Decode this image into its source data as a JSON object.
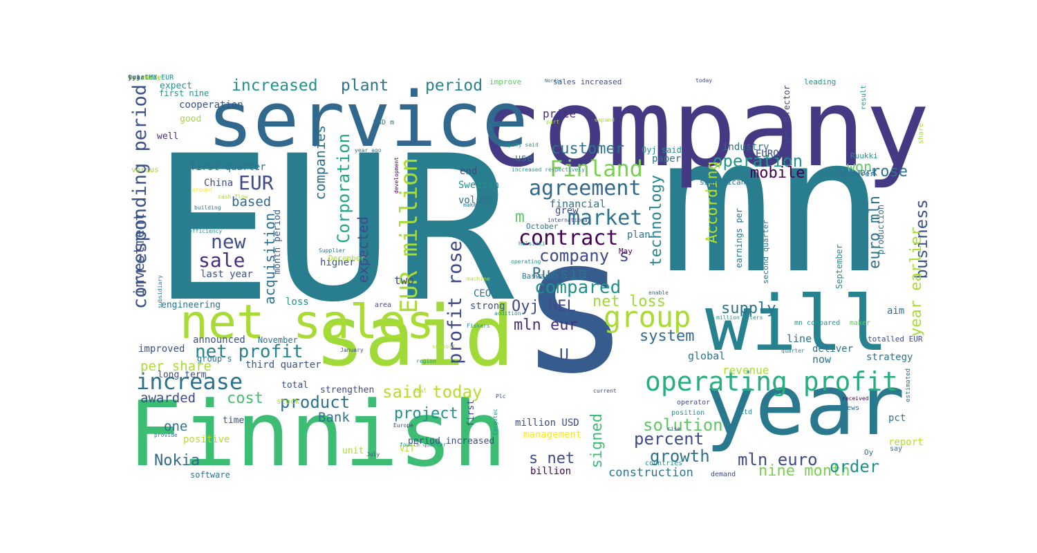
{
  "palette": {
    "dark_purple": "#440154",
    "purple": "#472d7b",
    "indigo": "#3b528b",
    "blue": "#2c728e",
    "teal": "#21918c",
    "green_teal": "#28ae80",
    "green": "#5ec962",
    "lime": "#addc30",
    "yellow": "#fde725"
  },
  "words": [
    {
      "text": "EUR",
      "color": "#287d8e"
    },
    {
      "text": "mn",
      "color": "#287d8e"
    },
    {
      "text": "company",
      "color": "#443a83"
    },
    {
      "text": "service",
      "color": "#31688e"
    },
    {
      "text": "s",
      "color": "#365c8d"
    },
    {
      "text": "said",
      "color": "#a0da39"
    },
    {
      "text": "will",
      "color": "#26828e"
    },
    {
      "text": "year",
      "color": "#2a788e"
    },
    {
      "text": "Finnish",
      "color": "#3dbc74"
    },
    {
      "text": "net sales",
      "color": "#a8db34"
    },
    {
      "text": "operating profit",
      "color": "#29af7f"
    },
    {
      "text": "increase",
      "color": "#2c728e"
    },
    {
      "text": "corresponding period",
      "color": "#3b528b"
    },
    {
      "text": "EUR million",
      "color": "#a8db34"
    },
    {
      "text": "Finland",
      "color": "#7ad151"
    },
    {
      "text": "group",
      "color": "#a8db34"
    },
    {
      "text": "agreement",
      "color": "#31688e"
    },
    {
      "text": "market",
      "color": "#2c728e"
    },
    {
      "text": "contract",
      "color": "#440154"
    },
    {
      "text": "Corporation",
      "color": "#21a685"
    },
    {
      "text": "profit rose",
      "color": "#3e4a89"
    },
    {
      "text": "net profit",
      "color": "#26828e"
    },
    {
      "text": "new",
      "color": "#3e4a89"
    },
    {
      "text": "sale",
      "color": "#472d7b"
    },
    {
      "text": "EUR",
      "color": "#3e4a89"
    },
    {
      "text": "increased",
      "color": "#21918c"
    },
    {
      "text": "plant",
      "color": "#2c728e"
    },
    {
      "text": "period",
      "color": "#26828e"
    },
    {
      "text": "customer",
      "color": "#2c728e"
    },
    {
      "text": "operation",
      "color": "#1f988b"
    },
    {
      "text": "mobile",
      "color": "#440154"
    },
    {
      "text": "rose",
      "color": "#2c728e"
    },
    {
      "text": "business",
      "color": "#3b528b"
    },
    {
      "text": "euro mln",
      "color": "#2c728e"
    },
    {
      "text": "year earlier",
      "color": "#a8db34"
    },
    {
      "text": "According",
      "color": "#b5de2b"
    },
    {
      "text": "technology",
      "color": "#25858e"
    },
    {
      "text": "compared",
      "color": "#21918c"
    },
    {
      "text": "company s",
      "color": "#3e4a89"
    },
    {
      "text": "Russia",
      "color": "#2c728e"
    },
    {
      "text": "Oyj HEL",
      "color": "#3e4a89"
    },
    {
      "text": "net loss",
      "color": "#a0da39"
    },
    {
      "text": "mln eur",
      "color": "#472d7b"
    },
    {
      "text": "supply",
      "color": "#2c728e"
    },
    {
      "text": "system",
      "color": "#31688e"
    },
    {
      "text": "said today",
      "color": "#b5de2b"
    },
    {
      "text": "product",
      "color": "#2c728e"
    },
    {
      "text": "project",
      "color": "#21918c"
    },
    {
      "text": "percent",
      "color": "#3e4a89"
    },
    {
      "text": "growth",
      "color": "#2c728e"
    },
    {
      "text": "mln euro",
      "color": "#3e4a89"
    },
    {
      "text": "solution",
      "color": "#5ec962"
    },
    {
      "text": "s net",
      "color": "#3e4a89"
    },
    {
      "text": "nine month",
      "color": "#7ad151"
    },
    {
      "text": "order",
      "color": "#21918c"
    },
    {
      "text": "signed",
      "color": "#3dbc74"
    },
    {
      "text": "Nokia",
      "color": "#31688e"
    },
    {
      "text": "cost",
      "color": "#44bf70"
    },
    {
      "text": "Bank",
      "color": "#2c728e"
    },
    {
      "text": "awarded",
      "color": "#3e4a89"
    },
    {
      "text": "per share",
      "color": "#a8db34"
    },
    {
      "text": "investment",
      "color": "#3b528b"
    },
    {
      "text": "acquisition",
      "color": "#2c728e"
    },
    {
      "text": "companies",
      "color": "#2c728e"
    },
    {
      "text": "expected",
      "color": "#3e4a89"
    },
    {
      "text": "based",
      "color": "#31688e"
    },
    {
      "text": "won",
      "color": "#5ec962"
    },
    {
      "text": "one",
      "color": "#2c728e"
    },
    {
      "text": "two",
      "color": "#3e4a89"
    },
    {
      "text": "m",
      "color": "#5ec962"
    },
    {
      "text": "U",
      "color": "#3e4a89"
    },
    {
      "text": "construction",
      "color": "#2c728e"
    },
    {
      "text": "first quarter",
      "color": "#2c728e"
    },
    {
      "text": "last year",
      "color": "#3b528b"
    },
    {
      "text": "China",
      "color": "#3e4a89"
    },
    {
      "text": "financial",
      "color": "#2c728e"
    },
    {
      "text": "industry",
      "color": "#2c728e"
    },
    {
      "text": "network",
      "color": "#2c728e"
    },
    {
      "text": "EURO",
      "color": "#3e4a89"
    },
    {
      "text": "price",
      "color": "#472d7b"
    },
    {
      "text": "improved",
      "color": "#3b528b"
    },
    {
      "text": "announced",
      "color": "#3b528b"
    },
    {
      "text": "third quarter",
      "color": "#3b528b"
    },
    {
      "text": "higher",
      "color": "#3b528b"
    },
    {
      "text": "loss",
      "color": "#21918c"
    },
    {
      "text": "revenue",
      "color": "#a8db34"
    },
    {
      "text": "global",
      "color": "#2c728e"
    },
    {
      "text": "line",
      "color": "#2c728e"
    },
    {
      "text": "now",
      "color": "#2c728e"
    },
    {
      "text": "deliver",
      "color": "#2c728e"
    },
    {
      "text": "strategy",
      "color": "#2c728e"
    },
    {
      "text": "paper",
      "color": "#2c728e"
    },
    {
      "text": "plan",
      "color": "#2c728e"
    },
    {
      "text": "grew",
      "color": "#3e4a89"
    },
    {
      "text": "use",
      "color": "#2c728e"
    },
    {
      "text": "end",
      "color": "#3e4a89"
    },
    {
      "text": "Swedish",
      "color": "#21918c"
    },
    {
      "text": "volume",
      "color": "#2c728e"
    },
    {
      "text": "CEO",
      "color": "#2c728e"
    },
    {
      "text": "strong",
      "color": "#3b528b"
    },
    {
      "text": "engineering",
      "color": "#2c728e"
    },
    {
      "text": "month period",
      "color": "#3b528b"
    },
    {
      "text": "aim",
      "color": "#2c728e"
    },
    {
      "text": "pct",
      "color": "#2c728e"
    },
    {
      "text": "report",
      "color": "#b5de2b"
    },
    {
      "text": "million USD",
      "color": "#3e4a89"
    },
    {
      "text": "billion",
      "color": "#440154"
    },
    {
      "text": "management",
      "color": "#fde725"
    },
    {
      "text": "strengthen",
      "color": "#3e4a89"
    },
    {
      "text": "long term",
      "color": "#3e4a89"
    },
    {
      "text": "total",
      "color": "#3e4a89"
    },
    {
      "text": "positive",
      "color": "#b5de2b"
    },
    {
      "text": "time",
      "color": "#3e4a89"
    },
    {
      "text": "period increased",
      "color": "#3e4a89"
    },
    {
      "text": "unit",
      "color": "#a8db34"
    },
    {
      "text": "first",
      "color": "#3e4a89"
    },
    {
      "text": "cooperation",
      "color": "#3b528b"
    },
    {
      "text": "good",
      "color": "#a8db34"
    },
    {
      "text": "well",
      "color": "#472d7b"
    },
    {
      "text": "expect",
      "color": "#21918c"
    },
    {
      "text": "first nine",
      "color": "#21918c"
    },
    {
      "text": "improve",
      "color": "#5ec962"
    },
    {
      "text": "leading",
      "color": "#21918c"
    },
    {
      "text": "sales increased",
      "color": "#3e4a89"
    },
    {
      "text": "million director",
      "color": "#3e4a89"
    },
    {
      "text": "result",
      "color": "#21918c"
    },
    {
      "text": "Ruukki",
      "color": "#21918c"
    },
    {
      "text": "Oyj said",
      "color": "#21918c"
    },
    {
      "text": "September",
      "color": "#21918c"
    },
    {
      "text": "production",
      "color": "#2c728e"
    },
    {
      "text": "earnings per",
      "color": "#2c728e"
    },
    {
      "text": "second quarter",
      "color": "#2c728e"
    },
    {
      "text": "significant",
      "color": "#2c728e"
    },
    {
      "text": "manufacturer",
      "color": "#2c728e"
    },
    {
      "text": "mn compared",
      "color": "#21918c"
    },
    {
      "text": "maker",
      "color": "#5ec962"
    },
    {
      "text": "totalled EUR",
      "color": "#3e4a89"
    },
    {
      "text": "operator",
      "color": "#3e4a89"
    },
    {
      "text": "position",
      "color": "#21918c"
    },
    {
      "text": "Ltd",
      "color": "#21918c"
    },
    {
      "text": "Oy",
      "color": "#2c728e"
    },
    {
      "text": "say",
      "color": "#2c728e"
    },
    {
      "text": "demand",
      "color": "#3e4a89"
    },
    {
      "text": "countries",
      "color": "#21918c"
    },
    {
      "text": "VIT",
      "color": "#b5de2b"
    },
    {
      "text": "software",
      "color": "#2c728e"
    },
    {
      "text": "stock",
      "color": "#a8db34"
    },
    {
      "text": "November",
      "color": "#2c728e"
    },
    {
      "text": "group s",
      "color": "#2c728e"
    },
    {
      "text": "May",
      "color": "#440154"
    },
    {
      "text": "October",
      "color": "#2c728e"
    },
    {
      "text": "Basware",
      "color": "#2c728e"
    },
    {
      "text": "December",
      "color": "#a8db34"
    },
    {
      "text": "versus",
      "color": "#a8db34"
    },
    {
      "text": "USD m",
      "color": "#2c728e"
    },
    {
      "text": "share",
      "color": "#a8db34"
    },
    {
      "text": "estimated",
      "color": "#2c728e"
    },
    {
      "text": "today",
      "color": "#3e4a89"
    },
    {
      "text": "Nordic",
      "color": "#2c728e"
    },
    {
      "text": "part",
      "color": "#a8db34"
    },
    {
      "text": "expand",
      "color": "#a8db34"
    },
    {
      "text": "company said",
      "color": "#21918c"
    },
    {
      "text": "increased respectively",
      "color": "#21918c"
    },
    {
      "text": "development",
      "color": "#440154"
    },
    {
      "text": "year ago",
      "color": "#2c728e"
    },
    {
      "text": "around",
      "color": "#fde725"
    },
    {
      "text": "cash flow",
      "color": "#a8db34"
    },
    {
      "text": "building",
      "color": "#2c728e"
    },
    {
      "text": "efficiency",
      "color": "#21918c"
    },
    {
      "text": "Supplier",
      "color": "#2c728e"
    },
    {
      "text": "international",
      "color": "#3e4a89"
    },
    {
      "text": "make",
      "color": "#2c728e"
    },
    {
      "text": "Helsinki",
      "color": "#21918c"
    },
    {
      "text": "operating",
      "color": "#21918c"
    },
    {
      "text": "machine",
      "color": "#b5de2b"
    },
    {
      "text": "subsidiary",
      "color": "#2c728e"
    },
    {
      "text": "enable",
      "color": "#2c728e"
    },
    {
      "text": "million liters",
      "color": "#21918c"
    },
    {
      "text": "Fiskars",
      "color": "#21918c"
    },
    {
      "text": "addition",
      "color": "#21918c"
    },
    {
      "text": "area",
      "color": "#3e4a89"
    },
    {
      "text": "January",
      "color": "#3e4a89"
    },
    {
      "text": "support",
      "color": "#b5de2b"
    },
    {
      "text": "quarter",
      "color": "#21918c"
    },
    {
      "text": "region",
      "color": "#21918c"
    },
    {
      "text": "deal",
      "color": "#b5de2b"
    },
    {
      "text": "current",
      "color": "#3e4a89"
    },
    {
      "text": "Plc",
      "color": "#3e4a89"
    },
    {
      "text": "Cargotec",
      "color": "#21918c"
    },
    {
      "text": "Europe",
      "color": "#3e4a89"
    },
    {
      "text": "fourth quarter",
      "color": "#21918c"
    },
    {
      "text": "July",
      "color": "#3e4a89"
    },
    {
      "text": "provide",
      "color": "#2c728e"
    },
    {
      "text": "rise",
      "color": "#3e4a89"
    },
    {
      "text": "received",
      "color": "#440154"
    },
    {
      "text": "ADP News",
      "color": "#2c728e"
    },
    {
      "text": "Oyj OMX",
      "color": "#2c728e"
    },
    {
      "text": "estimate",
      "color": "#b5de2b"
    },
    {
      "text": "capacity",
      "color": "#b5de2b"
    },
    {
      "text": "totaled EUR",
      "color": "#21918c"
    },
    {
      "text": "year",
      "color": "#3e4a89"
    }
  ]
}
